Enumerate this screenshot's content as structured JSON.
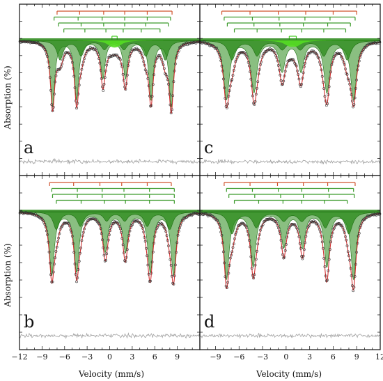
{
  "chart_data": [
    {
      "type": "line",
      "panel_label": "a",
      "x_axis_label": "",
      "y_axis_label": "Absorption (%)",
      "xlim": [
        -12,
        12
      ],
      "lines": [
        [
          -7.0,
          -4.0,
          -0.8,
          2.0,
          5.0,
          8.3
        ],
        [
          -7.4,
          -4.2,
          -1.0,
          2.0,
          5.0,
          8.1
        ],
        [
          -6.8,
          -3.8,
          -0.8,
          2.0,
          4.8,
          7.8
        ],
        [
          -6.1,
          -3.3,
          -0.5,
          1.8,
          4.2,
          6.7
        ]
      ],
      "doublet": [
        0.3,
        1.0
      ],
      "sextets": [
        {
          "center": 0.6,
          "positions": [
            -7.6,
            -4.4,
            -0.9,
            2.1,
            5.5,
            8.2
          ],
          "depths": [
            0.62,
            0.55,
            0.35,
            0.35,
            0.55,
            0.62
          ],
          "width": 0.35
        },
        {
          "center": 0.5,
          "positions": [
            -6.6,
            -3.8,
            -0.7,
            1.9,
            4.8,
            7.4
          ],
          "depths": [
            0.18,
            0.14,
            0.08,
            0.08,
            0.14,
            0.18
          ],
          "width": 0.5
        }
      ],
      "doublet_peak": {
        "positions": [
          0.3,
          1.0
        ],
        "depth": 0.04
      }
    },
    {
      "type": "line",
      "panel_label": "c",
      "x_axis_label": "",
      "y_axis_label": "",
      "xlim": [
        -11,
        12
      ],
      "lines": [
        [
          -8.2,
          -4.6,
          -1.0,
          2.5,
          6.0,
          9.0
        ],
        [
          -7.9,
          -4.3,
          -0.9,
          2.4,
          5.6,
          8.8
        ],
        [
          -7.5,
          -4.1,
          -0.8,
          2.2,
          5.3,
          8.2
        ],
        [
          -6.6,
          -3.7,
          -0.6,
          2.0,
          4.8,
          7.6
        ]
      ],
      "doublet": [
        0.4,
        1.3
      ],
      "sextets": [
        {
          "center": 0.5,
          "positions": [
            -7.6,
            -4.1,
            -0.5,
            1.9,
            5.2,
            8.6
          ],
          "depths": [
            0.55,
            0.48,
            0.28,
            0.28,
            0.48,
            0.55
          ],
          "width": 0.45
        },
        {
          "center": 0.5,
          "positions": [
            -6.9,
            -3.7,
            -0.5,
            1.8,
            4.8,
            7.8
          ],
          "depths": [
            0.18,
            0.14,
            0.08,
            0.08,
            0.14,
            0.18
          ],
          "width": 0.55
        }
      ],
      "doublet_peak": {
        "positions": [
          0.4,
          1.3
        ],
        "depth": 0.04
      }
    },
    {
      "type": "line",
      "panel_label": "b",
      "x_axis_label": "Velocity (mm/s)",
      "y_axis_label": "Absorption (%)",
      "xlim": [
        -12,
        12
      ],
      "xticks": [
        -12,
        -9,
        -6,
        -3,
        0,
        3,
        6,
        9
      ],
      "lines": [
        [
          -8.0,
          -4.8,
          -1.3,
          1.6,
          5.0,
          8.2
        ],
        [
          -7.7,
          -4.3,
          -1.0,
          1.9,
          5.3,
          8.6
        ],
        [
          -7.6,
          -4.3,
          -1.0,
          2.0,
          5.3,
          8.6
        ],
        [
          -7.1,
          -3.8,
          -0.7,
          2.1,
          5.3,
          8.6
        ]
      ],
      "sextets": [
        {
          "center": 0.4,
          "positions": [
            -7.7,
            -4.4,
            -0.6,
            2.1,
            5.4,
            8.5
          ],
          "depths": [
            0.58,
            0.55,
            0.36,
            0.36,
            0.55,
            0.58
          ],
          "width": 0.4
        },
        {
          "center": 0.4,
          "positions": [
            -7.1,
            -3.9,
            -0.4,
            2.0,
            5.0,
            8.0
          ],
          "depths": [
            0.16,
            0.13,
            0.08,
            0.08,
            0.13,
            0.16
          ],
          "width": 0.5
        }
      ]
    },
    {
      "type": "line",
      "panel_label": "d",
      "x_axis_label": "Velocity (mm/s)",
      "y_axis_label": "",
      "xlim": [
        -11,
        12
      ],
      "xticks": [
        -9,
        -6,
        -3,
        0,
        3,
        6,
        9,
        12
      ],
      "lines": [
        [
          -7.9,
          -4.6,
          -1.1,
          2.2,
          5.3,
          8.8
        ],
        [
          -7.6,
          -4.3,
          -1.0,
          2.0,
          5.4,
          8.6
        ],
        [
          -7.3,
          -4.0,
          -0.7,
          2.2,
          5.5,
          8.7
        ],
        [
          -6.6,
          -3.5,
          -0.4,
          2.0,
          4.9,
          7.8
        ]
      ],
      "sextets": [
        {
          "center": 0.5,
          "positions": [
            -7.6,
            -4.2,
            -0.3,
            2.1,
            5.2,
            8.6
          ],
          "depths": [
            0.62,
            0.5,
            0.32,
            0.32,
            0.5,
            0.62
          ],
          "width": 0.4
        },
        {
          "center": 0.5,
          "positions": [
            -6.9,
            -3.8,
            -0.3,
            2.0,
            5.0,
            8.0
          ],
          "depths": [
            0.2,
            0.14,
            0.08,
            0.08,
            0.14,
            0.2
          ],
          "width": 0.55
        }
      ]
    }
  ],
  "colors": {
    "fit_line": "#d03030",
    "component_fill": "#2a8a1a",
    "component_stroke": "#1e6e12",
    "data_points": "#333333",
    "residual": "#a0a0a0",
    "stick_red": "#d0542e",
    "stick_green": "#3a9a2a"
  }
}
